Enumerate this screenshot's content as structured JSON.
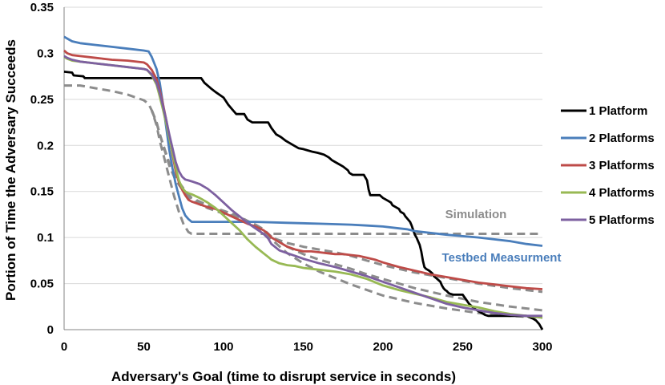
{
  "chart_data": {
    "type": "line",
    "xlabel": "Adversary's Goal (time to disrupt service in seconds)",
    "ylabel": "Portion of Time the Adversary Succeeds",
    "xlim": [
      0,
      300
    ],
    "ylim": [
      0,
      0.35
    ],
    "xticks": [
      0,
      50,
      100,
      150,
      200,
      250,
      300
    ],
    "yticks": [
      0,
      0.05,
      0.1,
      0.15,
      0.2,
      0.25,
      0.3,
      0.35
    ],
    "xtick_labels": [
      "0",
      "50",
      "100",
      "150",
      "200",
      "250",
      "300"
    ],
    "ytick_labels": [
      "0",
      "0.05",
      "0.1",
      "0.15",
      "0.2",
      "0.25",
      "0.3",
      "0.35"
    ],
    "grid": "horizontal",
    "legend_position": "right",
    "series": [
      {
        "name": "1 Platform",
        "color": "#000000",
        "style": "solid",
        "x": [
          0,
          5,
          6,
          12,
          13,
          55,
          70,
          86,
          88,
          92,
          95,
          100,
          103,
          106,
          108,
          113,
          115,
          118,
          120,
          128,
          130,
          133,
          136,
          139,
          141,
          144,
          147,
          150,
          156,
          159,
          161,
          163,
          166,
          168,
          170,
          173,
          175,
          178,
          179,
          181,
          182,
          188,
          190,
          191,
          192,
          193,
          198,
          200,
          203,
          205,
          206,
          208,
          210,
          211,
          213,
          214,
          215,
          217,
          218,
          219,
          220,
          221,
          222,
          223,
          224,
          225,
          226,
          227,
          228,
          229,
          231,
          232,
          234,
          236,
          237,
          238,
          239,
          240,
          241,
          242,
          244,
          245,
          246,
          247,
          248,
          249,
          250,
          252,
          254,
          256,
          258,
          260,
          262,
          264,
          266,
          268,
          270,
          275,
          280,
          290,
          294,
          296,
          297,
          298,
          299,
          300
        ],
        "values": [
          0.28,
          0.279,
          0.276,
          0.275,
          0.273,
          0.273,
          0.273,
          0.273,
          0.268,
          0.262,
          0.258,
          0.252,
          0.244,
          0.238,
          0.234,
          0.234,
          0.228,
          0.225,
          0.225,
          0.225,
          0.219,
          0.212,
          0.209,
          0.205,
          0.203,
          0.2,
          0.197,
          0.196,
          0.193,
          0.192,
          0.191,
          0.19,
          0.187,
          0.184,
          0.182,
          0.179,
          0.177,
          0.173,
          0.17,
          0.168,
          0.168,
          0.168,
          0.162,
          0.152,
          0.146,
          0.146,
          0.146,
          0.143,
          0.14,
          0.138,
          0.135,
          0.133,
          0.131,
          0.128,
          0.126,
          0.123,
          0.121,
          0.117,
          0.113,
          0.108,
          0.103,
          0.1,
          0.096,
          0.092,
          0.085,
          0.075,
          0.068,
          0.066,
          0.065,
          0.064,
          0.061,
          0.058,
          0.055,
          0.052,
          0.048,
          0.045,
          0.043,
          0.042,
          0.04,
          0.039,
          0.038,
          0.038,
          0.038,
          0.038,
          0.038,
          0.038,
          0.038,
          0.033,
          0.028,
          0.025,
          0.022,
          0.02,
          0.018,
          0.016,
          0.015,
          0.015,
          0.015,
          0.015,
          0.015,
          0.015,
          0.012,
          0.01,
          0.008,
          0.006,
          0.003,
          0.0
        ]
      },
      {
        "name": "2 Platforms",
        "color": "#4a7ebb",
        "style": "solid",
        "x": [
          0,
          2,
          5,
          10,
          20,
          30,
          40,
          50,
          53,
          55,
          58,
          60,
          62,
          64,
          66,
          68,
          70,
          72,
          74,
          76,
          78,
          80,
          85,
          90,
          100,
          120,
          140,
          160,
          180,
          190,
          200,
          210,
          215,
          220,
          240,
          260,
          280,
          290,
          300
        ],
        "values": [
          0.318,
          0.316,
          0.313,
          0.311,
          0.309,
          0.307,
          0.305,
          0.303,
          0.302,
          0.296,
          0.283,
          0.268,
          0.245,
          0.22,
          0.195,
          0.175,
          0.158,
          0.145,
          0.132,
          0.124,
          0.12,
          0.117,
          0.117,
          0.117,
          0.117,
          0.117,
          0.116,
          0.115,
          0.114,
          0.113,
          0.112,
          0.11,
          0.109,
          0.107,
          0.103,
          0.1,
          0.096,
          0.093,
          0.091
        ]
      },
      {
        "name": "3 Platforms",
        "color": "#be4b48",
        "style": "solid",
        "x": [
          0,
          2,
          5,
          10,
          20,
          30,
          40,
          50,
          52,
          55,
          58,
          60,
          62,
          64,
          66,
          68,
          70,
          72,
          74,
          76,
          78,
          80,
          85,
          90,
          95,
          100,
          105,
          110,
          115,
          120,
          125,
          128,
          130,
          135,
          140,
          145,
          150,
          155,
          160,
          165,
          170,
          175,
          180,
          185,
          190,
          195,
          200,
          210,
          220,
          230,
          240,
          250,
          260,
          270,
          280,
          290,
          300
        ],
        "values": [
          0.303,
          0.3,
          0.298,
          0.297,
          0.295,
          0.293,
          0.292,
          0.29,
          0.288,
          0.282,
          0.272,
          0.26,
          0.245,
          0.228,
          0.21,
          0.19,
          0.172,
          0.16,
          0.152,
          0.146,
          0.141,
          0.139,
          0.136,
          0.133,
          0.131,
          0.127,
          0.123,
          0.119,
          0.115,
          0.112,
          0.108,
          0.104,
          0.1,
          0.095,
          0.09,
          0.087,
          0.085,
          0.085,
          0.084,
          0.083,
          0.082,
          0.082,
          0.081,
          0.08,
          0.078,
          0.076,
          0.073,
          0.068,
          0.064,
          0.06,
          0.057,
          0.054,
          0.051,
          0.049,
          0.047,
          0.045,
          0.044
        ]
      },
      {
        "name": "4 Platforms",
        "color": "#98b954",
        "style": "solid",
        "x": [
          0,
          2,
          5,
          10,
          20,
          30,
          40,
          50,
          52,
          55,
          58,
          60,
          62,
          64,
          66,
          68,
          70,
          72,
          74,
          76,
          78,
          80,
          85,
          90,
          95,
          100,
          105,
          110,
          115,
          120,
          125,
          128,
          130,
          135,
          140,
          145,
          150,
          160,
          170,
          180,
          190,
          200,
          210,
          220,
          230,
          240,
          250,
          260,
          270,
          280,
          290,
          300
        ],
        "values": [
          0.296,
          0.294,
          0.292,
          0.291,
          0.289,
          0.287,
          0.285,
          0.283,
          0.282,
          0.276,
          0.266,
          0.253,
          0.239,
          0.224,
          0.208,
          0.192,
          0.176,
          0.162,
          0.154,
          0.15,
          0.148,
          0.147,
          0.143,
          0.138,
          0.132,
          0.124,
          0.116,
          0.108,
          0.098,
          0.09,
          0.083,
          0.079,
          0.076,
          0.072,
          0.07,
          0.069,
          0.067,
          0.065,
          0.063,
          0.06,
          0.055,
          0.048,
          0.043,
          0.039,
          0.035,
          0.03,
          0.027,
          0.024,
          0.02,
          0.017,
          0.015,
          0.013
        ]
      },
      {
        "name": "5 Platforms",
        "color": "#7d60a0",
        "style": "solid",
        "x": [
          0,
          2,
          5,
          10,
          20,
          30,
          40,
          50,
          52,
          55,
          58,
          60,
          62,
          64,
          66,
          68,
          70,
          72,
          74,
          76,
          78,
          80,
          85,
          90,
          95,
          100,
          105,
          110,
          115,
          120,
          125,
          128,
          130,
          135,
          140,
          145,
          150,
          160,
          170,
          180,
          190,
          200,
          210,
          220,
          230,
          240,
          250,
          260,
          270,
          280,
          290,
          300
        ],
        "values": [
          0.297,
          0.295,
          0.293,
          0.291,
          0.289,
          0.287,
          0.285,
          0.283,
          0.282,
          0.277,
          0.268,
          0.257,
          0.243,
          0.228,
          0.212,
          0.197,
          0.182,
          0.172,
          0.166,
          0.163,
          0.162,
          0.161,
          0.158,
          0.153,
          0.146,
          0.138,
          0.13,
          0.123,
          0.116,
          0.11,
          0.104,
          0.099,
          0.093,
          0.086,
          0.083,
          0.08,
          0.077,
          0.072,
          0.068,
          0.063,
          0.058,
          0.052,
          0.046,
          0.04,
          0.034,
          0.028,
          0.024,
          0.021,
          0.018,
          0.016,
          0.015,
          0.015
        ]
      },
      {
        "name": "Simulation",
        "color": "#8c8c8c",
        "style": "dashed",
        "x": [
          0,
          10,
          20,
          30,
          40,
          45,
          50,
          53,
          55,
          58,
          60,
          63,
          66,
          69,
          72,
          75,
          78,
          80,
          90,
          100,
          150,
          200,
          250,
          300
        ],
        "values": [
          0.265,
          0.265,
          0.262,
          0.259,
          0.255,
          0.252,
          0.249,
          0.245,
          0.238,
          0.222,
          0.205,
          0.185,
          0.165,
          0.145,
          0.128,
          0.114,
          0.106,
          0.104,
          0.104,
          0.104,
          0.104,
          0.104,
          0.104,
          0.104
        ]
      },
      {
        "name": "Simulation",
        "color": "#8c8c8c",
        "style": "dashed",
        "x": [
          55,
          58,
          60,
          63,
          66,
          70,
          75,
          80,
          90,
          100,
          110,
          115,
          120,
          125,
          130,
          140,
          150,
          160,
          170,
          180,
          190,
          200,
          220,
          240,
          260,
          280,
          300
        ],
        "values": [
          0.238,
          0.225,
          0.212,
          0.195,
          0.178,
          0.162,
          0.15,
          0.14,
          0.132,
          0.126,
          0.122,
          0.118,
          0.114,
          0.108,
          0.1,
          0.094,
          0.09,
          0.087,
          0.084,
          0.08,
          0.075,
          0.07,
          0.062,
          0.056,
          0.05,
          0.045,
          0.041
        ]
      },
      {
        "name": "Simulation",
        "color": "#8c8c8c",
        "style": "dashed",
        "x": [
          55,
          58,
          60,
          63,
          66,
          70,
          75,
          80,
          90,
          100,
          110,
          115,
          120,
          125,
          130,
          140,
          150,
          160,
          170,
          180,
          190,
          200,
          220,
          240,
          260,
          280,
          300
        ],
        "values": [
          0.238,
          0.225,
          0.212,
          0.196,
          0.18,
          0.164,
          0.152,
          0.142,
          0.134,
          0.128,
          0.122,
          0.118,
          0.114,
          0.109,
          0.101,
          0.09,
          0.082,
          0.076,
          0.071,
          0.066,
          0.06,
          0.055,
          0.045,
          0.037,
          0.03,
          0.025,
          0.021
        ]
      },
      {
        "name": "Simulation",
        "color": "#8c8c8c",
        "style": "dashed",
        "x": [
          55,
          58,
          60,
          63,
          66,
          70,
          75,
          80,
          90,
          100,
          110,
          115,
          120,
          125,
          130,
          140,
          150,
          160,
          170,
          180,
          190,
          200,
          220,
          240,
          260,
          280,
          300
        ],
        "values": [
          0.238,
          0.225,
          0.212,
          0.196,
          0.181,
          0.165,
          0.153,
          0.143,
          0.135,
          0.129,
          0.123,
          0.118,
          0.113,
          0.107,
          0.098,
          0.083,
          0.072,
          0.063,
          0.056,
          0.049,
          0.043,
          0.037,
          0.029,
          0.023,
          0.018,
          0.015,
          0.013
        ]
      }
    ],
    "legend": [
      "1 Platform",
      "2 Platforms",
      "3 Platforms",
      "4 Platforms",
      "5 Platforms"
    ],
    "annotations": [
      {
        "text": "Simulation",
        "color": "#8c8c8c"
      },
      {
        "text": "Testbed Measurment",
        "color": "#4a7ebb"
      }
    ]
  }
}
